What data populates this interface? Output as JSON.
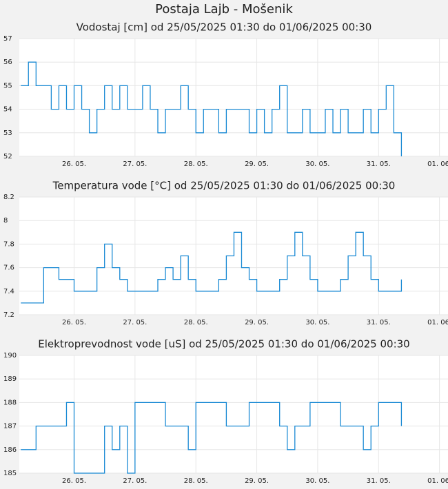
{
  "page_title": "Postaja Lajb - Mošenik",
  "chart_data": [
    {
      "type": "line",
      "step": true,
      "grid": true,
      "title": "Vodostaj [cm] od 25/05/2025 01:30 do 01/06/2025 00:30",
      "x": [
        25.125,
        25.25,
        25.375,
        25.5,
        25.625,
        25.75,
        25.875,
        26,
        26.125,
        26.25,
        26.375,
        26.5,
        26.625,
        26.75,
        26.875,
        27,
        27.125,
        27.25,
        27.375,
        27.5,
        27.625,
        27.75,
        27.875,
        28,
        28.125,
        28.25,
        28.375,
        28.5,
        28.625,
        28.75,
        28.875,
        29,
        29.125,
        29.25,
        29.375,
        29.5,
        29.625,
        29.75,
        29.875,
        30,
        30.125,
        30.25,
        30.375,
        30.5,
        30.625,
        30.75,
        30.875,
        31,
        31.125,
        31.25,
        31.375
      ],
      "series": [
        {
          "color": "#1a8ad4",
          "values": [
            55,
            56,
            55,
            55,
            54,
            55,
            54,
            55,
            54,
            53,
            54,
            55,
            54,
            55,
            54,
            54,
            55,
            54,
            53,
            54,
            54,
            55,
            54,
            53,
            54,
            54,
            53,
            54,
            54,
            54,
            53,
            54,
            53,
            54,
            55,
            53,
            53,
            54,
            53,
            53,
            54,
            53,
            54,
            53,
            53,
            54,
            53,
            54,
            55,
            53,
            52
          ]
        }
      ],
      "xlim": [
        25.1,
        32.14
      ],
      "xticks": [
        {
          "value": 26,
          "label": "26. 05."
        },
        {
          "value": 27,
          "label": "27. 05."
        },
        {
          "value": 28,
          "label": "28. 05."
        },
        {
          "value": 29,
          "label": "29. 05."
        },
        {
          "value": 30,
          "label": "30. 05."
        },
        {
          "value": 31,
          "label": "31. 05."
        },
        {
          "value": 32,
          "label": "01. 06."
        }
      ],
      "ylim": [
        52,
        57
      ],
      "yticks": [
        52,
        53,
        54,
        55,
        56,
        57
      ]
    },
    {
      "type": "line",
      "step": true,
      "grid": true,
      "title": "Temperatura vode [°C] od 25/05/2025 01:30 do 01/06/2025 00:30",
      "x": [
        25.125,
        25.25,
        25.375,
        25.5,
        25.625,
        25.75,
        25.875,
        26,
        26.125,
        26.25,
        26.375,
        26.5,
        26.625,
        26.75,
        26.875,
        27,
        27.125,
        27.25,
        27.375,
        27.5,
        27.625,
        27.75,
        27.875,
        28,
        28.125,
        28.25,
        28.375,
        28.5,
        28.625,
        28.75,
        28.875,
        29,
        29.125,
        29.25,
        29.375,
        29.5,
        29.625,
        29.75,
        29.875,
        30,
        30.125,
        30.25,
        30.375,
        30.5,
        30.625,
        30.75,
        30.875,
        31,
        31.125,
        31.25,
        31.375
      ],
      "series": [
        {
          "color": "#1a8ad4",
          "values": [
            7.3,
            7.3,
            7.3,
            7.6,
            7.6,
            7.5,
            7.5,
            7.4,
            7.4,
            7.4,
            7.6,
            7.8,
            7.6,
            7.5,
            7.4,
            7.4,
            7.4,
            7.4,
            7.5,
            7.6,
            7.5,
            7.7,
            7.5,
            7.4,
            7.4,
            7.4,
            7.5,
            7.7,
            7.9,
            7.6,
            7.5,
            7.4,
            7.4,
            7.4,
            7.5,
            7.7,
            7.9,
            7.7,
            7.5,
            7.4,
            7.4,
            7.4,
            7.5,
            7.7,
            7.9,
            7.7,
            7.5,
            7.4,
            7.4,
            7.4,
            7.5
          ]
        }
      ],
      "xlim": [
        25.1,
        32.14
      ],
      "xticks": [
        {
          "value": 26,
          "label": "26. 05."
        },
        {
          "value": 27,
          "label": "27. 05."
        },
        {
          "value": 28,
          "label": "28. 05."
        },
        {
          "value": 29,
          "label": "29. 05."
        },
        {
          "value": 30,
          "label": "30. 05."
        },
        {
          "value": 31,
          "label": "31. 05."
        },
        {
          "value": 32,
          "label": "01. 06."
        }
      ],
      "ylim": [
        7.2,
        8.2
      ],
      "yticks": [
        7.2,
        7.4,
        7.6,
        7.8,
        8,
        8.2
      ]
    },
    {
      "type": "line",
      "step": true,
      "grid": true,
      "title": "Elektroprevodnost vode [uS] od 25/05/2025 01:30 do 01/06/2025 00:30",
      "x": [
        25.125,
        25.25,
        25.375,
        25.5,
        25.625,
        25.75,
        25.875,
        26,
        26.125,
        26.25,
        26.375,
        26.5,
        26.625,
        26.75,
        26.875,
        27,
        27.125,
        27.25,
        27.375,
        27.5,
        27.625,
        27.75,
        27.875,
        28,
        28.125,
        28.25,
        28.375,
        28.5,
        28.625,
        28.75,
        28.875,
        29,
        29.125,
        29.25,
        29.375,
        29.5,
        29.625,
        29.75,
        29.875,
        30,
        30.125,
        30.25,
        30.375,
        30.5,
        30.625,
        30.75,
        30.875,
        31,
        31.125,
        31.25,
        31.375
      ],
      "series": [
        {
          "color": "#1a8ad4",
          "values": [
            186,
            186,
            187,
            187,
            187,
            187,
            188,
            185,
            185,
            185,
            185,
            187,
            186,
            187,
            185,
            188,
            188,
            188,
            188,
            187,
            187,
            187,
            186,
            188,
            188,
            188,
            188,
            187,
            187,
            187,
            188,
            188,
            188,
            188,
            187,
            186,
            187,
            187,
            188,
            188,
            188,
            188,
            187,
            187,
            187,
            186,
            187,
            188,
            188,
            188,
            187
          ]
        }
      ],
      "xlim": [
        25.1,
        32.14
      ],
      "xticks": [
        {
          "value": 26,
          "label": "26. 05."
        },
        {
          "value": 27,
          "label": "27. 05."
        },
        {
          "value": 28,
          "label": "28. 05."
        },
        {
          "value": 29,
          "label": "29. 05."
        },
        {
          "value": 30,
          "label": "30. 05."
        },
        {
          "value": 31,
          "label": "31. 05."
        },
        {
          "value": 32,
          "label": "01. 06."
        }
      ],
      "ylim": [
        185,
        190
      ],
      "yticks": [
        185,
        186,
        187,
        188,
        189,
        190
      ]
    }
  ]
}
